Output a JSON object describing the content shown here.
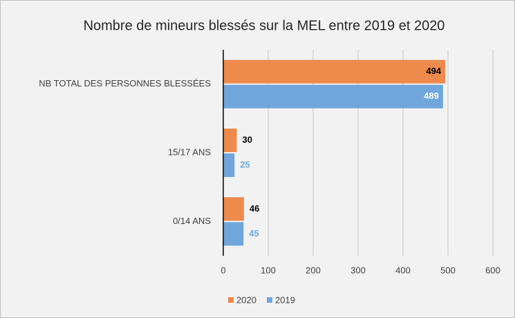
{
  "chart_data": {
    "type": "bar",
    "orientation": "horizontal",
    "title": "Nombre de mineurs blessés sur la MEL entre 2019 et 2020",
    "categories": [
      "NB TOTAL DES PERSONNES BLESSÉES",
      "15/17 ANS",
      "0/14 ANS"
    ],
    "series": [
      {
        "name": "2020",
        "color": "#ed8a4c",
        "values": [
          494,
          30,
          46
        ]
      },
      {
        "name": "2019",
        "color": "#6fa6dc",
        "values": [
          489,
          25,
          45
        ]
      }
    ],
    "xlim": [
      0,
      600
    ],
    "xticks": [
      0,
      100,
      200,
      300,
      400,
      500,
      600
    ],
    "grid": true,
    "legend": "bottom"
  }
}
